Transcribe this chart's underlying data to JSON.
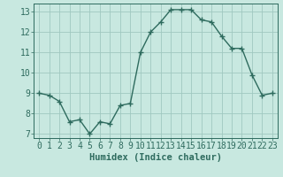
{
  "x": [
    0,
    1,
    2,
    3,
    4,
    5,
    6,
    7,
    8,
    9,
    10,
    11,
    12,
    13,
    14,
    15,
    16,
    17,
    18,
    19,
    20,
    21,
    22,
    23
  ],
  "y": [
    9.0,
    8.9,
    8.6,
    7.6,
    7.7,
    7.0,
    7.6,
    7.5,
    8.4,
    8.5,
    11.0,
    12.0,
    12.5,
    13.1,
    13.1,
    13.1,
    12.6,
    12.5,
    11.8,
    11.2,
    11.2,
    9.9,
    8.9,
    9.0
  ],
  "line_color": "#2e6b5e",
  "marker": "+",
  "markersize": 4,
  "linewidth": 1.0,
  "bg_color": "#c8e8e0",
  "grid_major_color": "#a0c8c0",
  "grid_minor_color": "#b8dcd6",
  "xlabel": "Humidex (Indice chaleur)",
  "xlim": [
    -0.5,
    23.5
  ],
  "ylim": [
    6.8,
    13.4
  ],
  "xticks": [
    0,
    1,
    2,
    3,
    4,
    5,
    6,
    7,
    8,
    9,
    10,
    11,
    12,
    13,
    14,
    15,
    16,
    17,
    18,
    19,
    20,
    21,
    22,
    23
  ],
  "yticks": [
    7,
    8,
    9,
    10,
    11,
    12,
    13
  ],
  "tick_color": "#2e6b5e",
  "xlabel_fontsize": 7.5,
  "tick_fontsize": 7
}
